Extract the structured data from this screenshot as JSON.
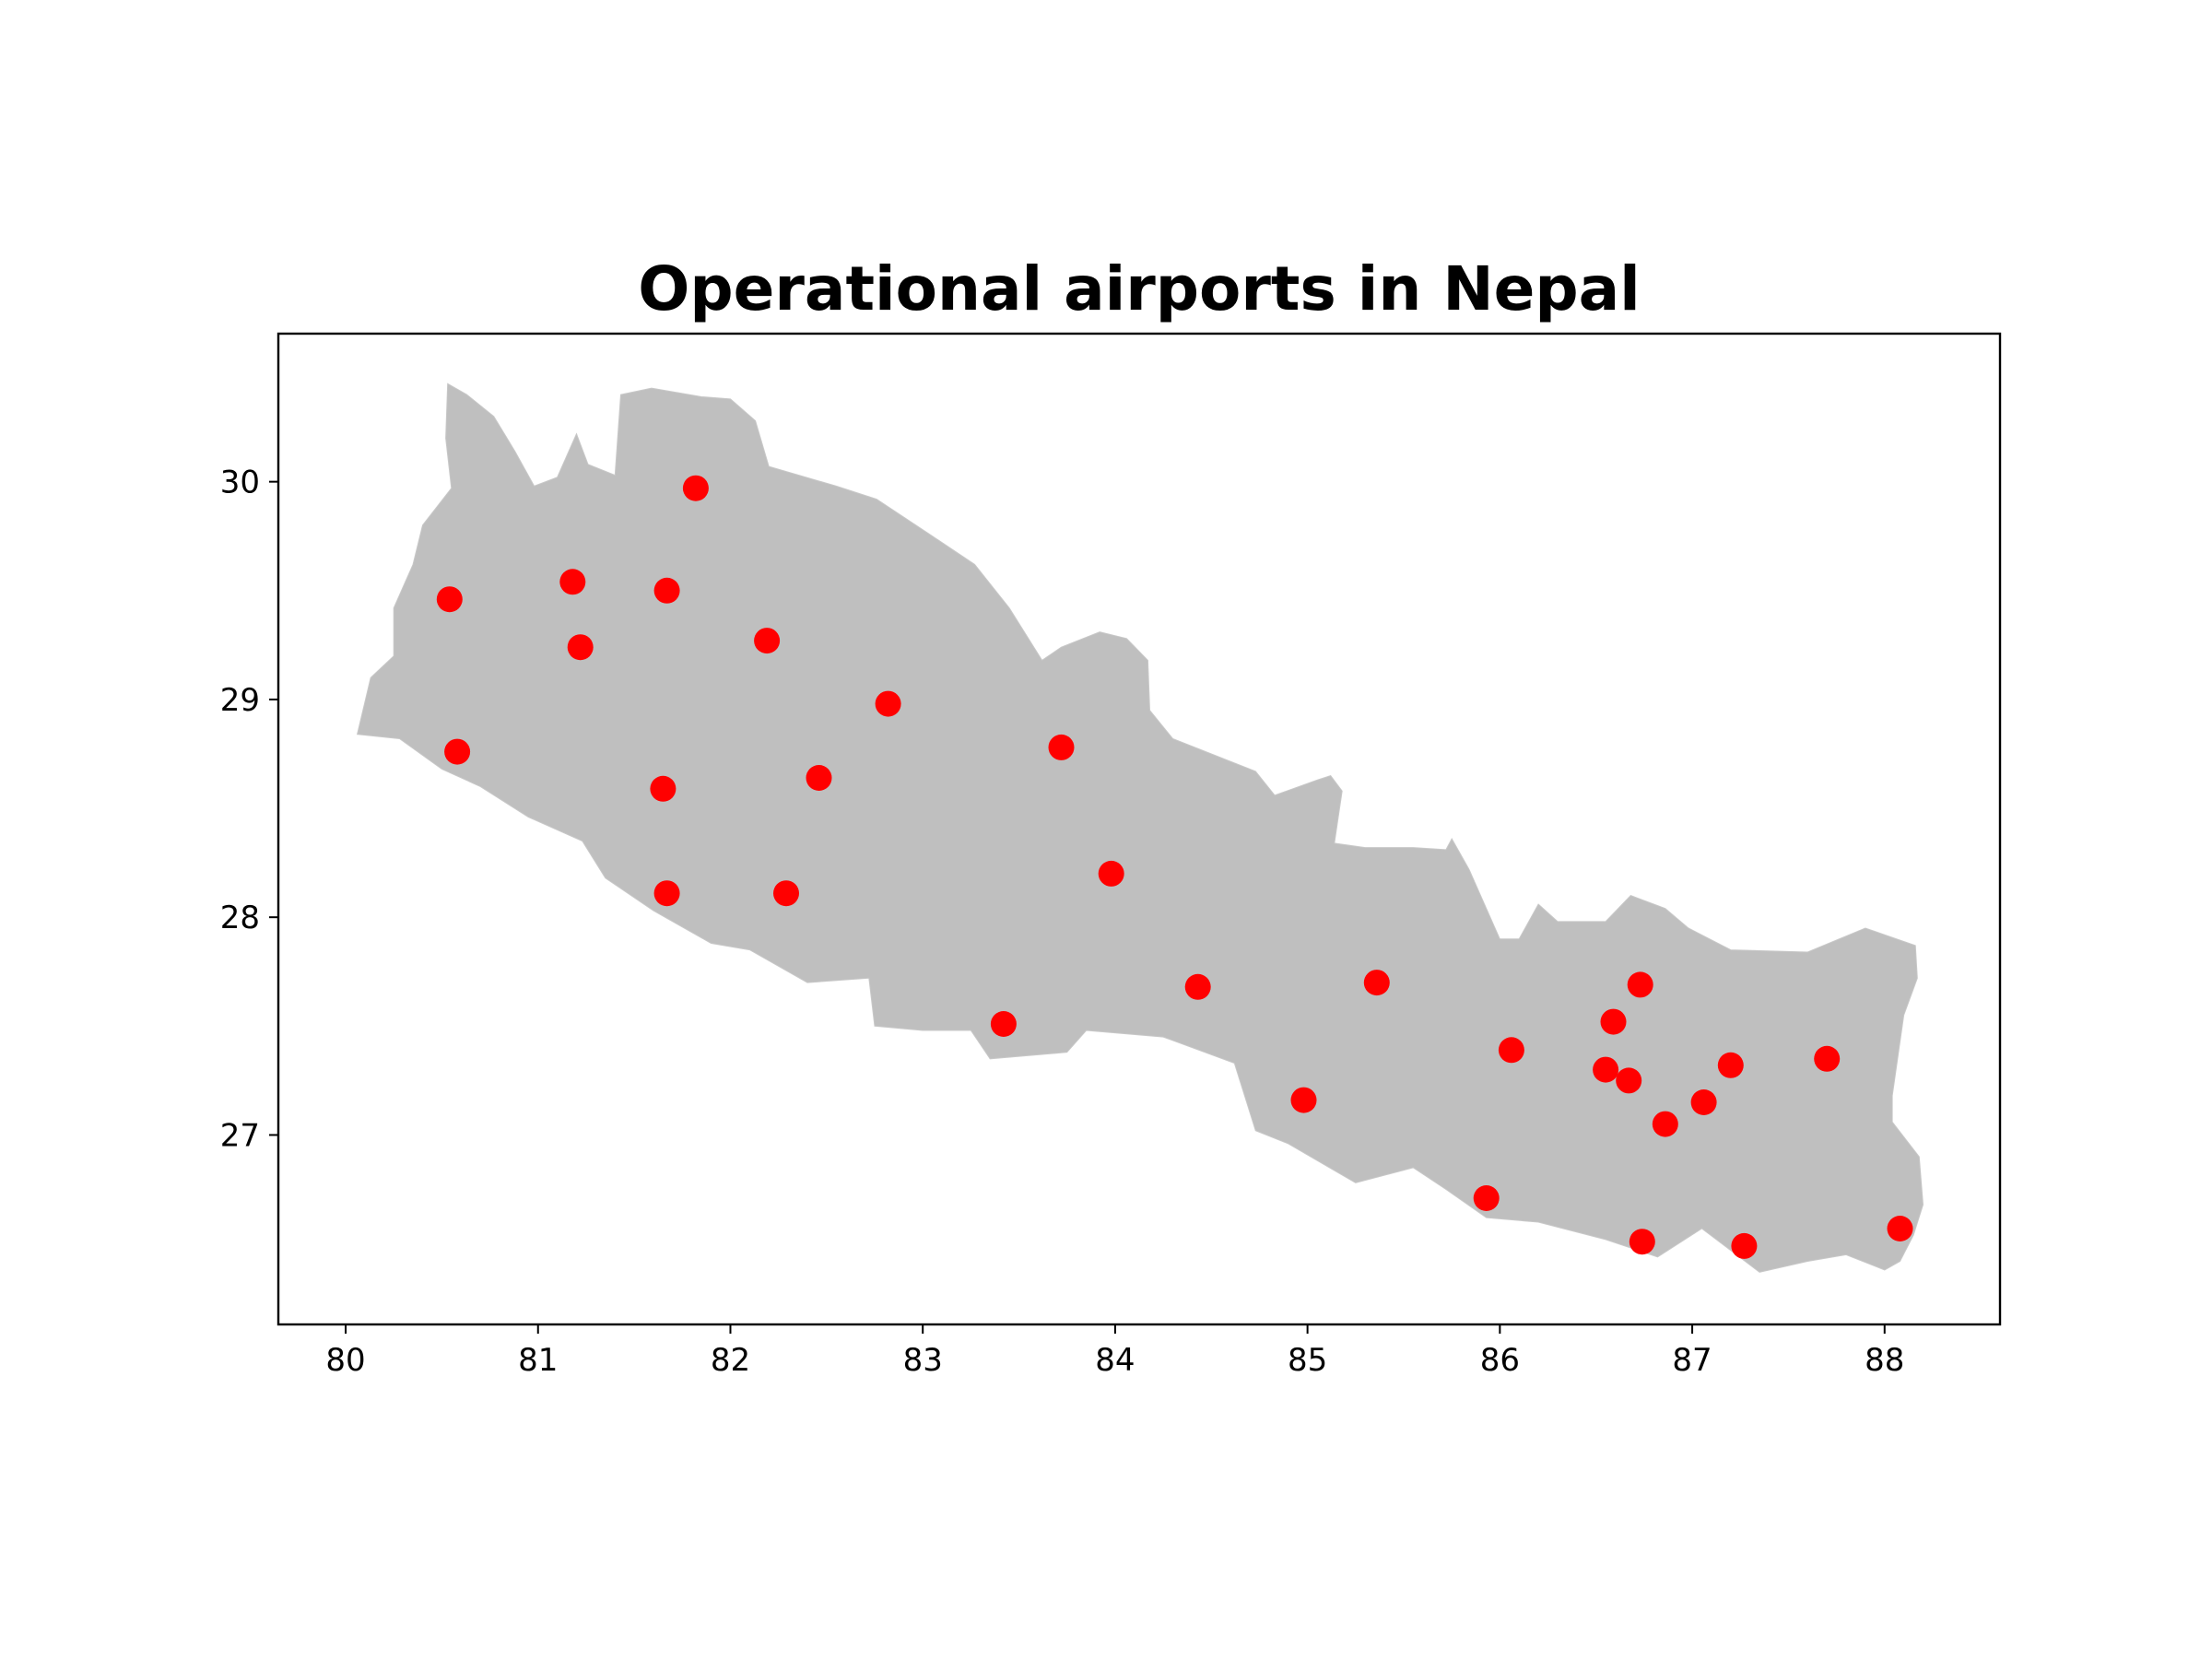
{
  "chart_data": {
    "type": "scatter",
    "title": "Operational airports in Nepal",
    "xlabel": "",
    "ylabel": "",
    "xlim": [
      79.65,
      88.6
    ],
    "ylim": [
      26.13,
      30.68
    ],
    "xticks": [
      80,
      81,
      82,
      83,
      84,
      85,
      86,
      87,
      88
    ],
    "yticks": [
      27,
      28,
      29,
      30
    ],
    "grid": false,
    "colors": {
      "land": "#bfbfbf",
      "point": "#ff0000"
    },
    "points": [
      {
        "lon": 81.82,
        "lat": 29.97
      },
      {
        "lon": 80.54,
        "lat": 29.46
      },
      {
        "lon": 81.18,
        "lat": 29.54
      },
      {
        "lon": 81.67,
        "lat": 29.5
      },
      {
        "lon": 81.22,
        "lat": 29.24
      },
      {
        "lon": 82.19,
        "lat": 29.27
      },
      {
        "lon": 82.82,
        "lat": 28.98
      },
      {
        "lon": 80.58,
        "lat": 28.76
      },
      {
        "lon": 81.65,
        "lat": 28.59
      },
      {
        "lon": 82.46,
        "lat": 28.64
      },
      {
        "lon": 83.72,
        "lat": 28.78
      },
      {
        "lon": 81.67,
        "lat": 28.11
      },
      {
        "lon": 82.29,
        "lat": 28.11
      },
      {
        "lon": 83.98,
        "lat": 28.2
      },
      {
        "lon": 83.42,
        "lat": 27.51
      },
      {
        "lon": 84.43,
        "lat": 27.68
      },
      {
        "lon": 85.36,
        "lat": 27.7
      },
      {
        "lon": 84.98,
        "lat": 27.16
      },
      {
        "lon": 86.06,
        "lat": 27.39
      },
      {
        "lon": 86.59,
        "lat": 27.52
      },
      {
        "lon": 86.73,
        "lat": 27.69
      },
      {
        "lon": 86.55,
        "lat": 27.3
      },
      {
        "lon": 86.67,
        "lat": 27.25
      },
      {
        "lon": 86.86,
        "lat": 27.05
      },
      {
        "lon": 87.06,
        "lat": 27.15
      },
      {
        "lon": 87.2,
        "lat": 27.32
      },
      {
        "lon": 87.7,
        "lat": 27.35
      },
      {
        "lon": 85.93,
        "lat": 26.71
      },
      {
        "lon": 86.74,
        "lat": 26.51
      },
      {
        "lon": 87.27,
        "lat": 26.49
      },
      {
        "lon": 88.08,
        "lat": 26.57
      }
    ]
  },
  "map": {
    "outline": [
      [
        80.53,
        30.45
      ],
      [
        80.63,
        30.4
      ],
      [
        80.77,
        30.3
      ],
      [
        80.88,
        30.14
      ],
      [
        80.98,
        29.98
      ],
      [
        81.1,
        30.02
      ],
      [
        81.2,
        30.22
      ],
      [
        81.26,
        30.08
      ],
      [
        81.4,
        30.03
      ],
      [
        81.43,
        30.4
      ],
      [
        81.59,
        30.43
      ],
      [
        81.85,
        30.39
      ],
      [
        82.0,
        30.38
      ],
      [
        82.13,
        30.28
      ],
      [
        82.2,
        30.07
      ],
      [
        82.55,
        29.98
      ],
      [
        82.76,
        29.92
      ],
      [
        83.05,
        29.75
      ],
      [
        83.27,
        29.62
      ],
      [
        83.45,
        29.42
      ],
      [
        83.62,
        29.18
      ],
      [
        83.72,
        29.24
      ],
      [
        83.92,
        29.31
      ],
      [
        84.06,
        29.28
      ],
      [
        84.17,
        29.18
      ],
      [
        84.18,
        28.95
      ],
      [
        84.3,
        28.82
      ],
      [
        84.5,
        28.75
      ],
      [
        84.73,
        28.67
      ],
      [
        84.83,
        28.56
      ],
      [
        85.05,
        28.63
      ],
      [
        85.12,
        28.65
      ],
      [
        85.18,
        28.58
      ],
      [
        85.14,
        28.34
      ],
      [
        85.3,
        28.32
      ],
      [
        85.55,
        28.32
      ],
      [
        85.72,
        28.31
      ],
      [
        85.75,
        28.36
      ],
      [
        85.84,
        28.22
      ],
      [
        86.0,
        27.9
      ],
      [
        86.1,
        27.9
      ],
      [
        86.2,
        28.06
      ],
      [
        86.3,
        27.98
      ],
      [
        86.55,
        27.98
      ],
      [
        86.68,
        28.1
      ],
      [
        86.86,
        28.04
      ],
      [
        86.98,
        27.95
      ],
      [
        87.2,
        27.85
      ],
      [
        87.6,
        27.84
      ],
      [
        87.9,
        27.95
      ],
      [
        88.16,
        27.87
      ],
      [
        88.17,
        27.72
      ],
      [
        88.1,
        27.55
      ],
      [
        88.04,
        27.18
      ],
      [
        88.04,
        27.06
      ],
      [
        88.18,
        26.9
      ],
      [
        88.2,
        26.68
      ],
      [
        88.15,
        26.54
      ],
      [
        88.08,
        26.42
      ],
      [
        88.0,
        26.38
      ],
      [
        87.8,
        26.45
      ],
      [
        87.6,
        26.42
      ],
      [
        87.35,
        26.37
      ],
      [
        87.05,
        26.57
      ],
      [
        86.82,
        26.44
      ],
      [
        86.55,
        26.52
      ],
      [
        86.2,
        26.6
      ],
      [
        85.93,
        26.62
      ],
      [
        85.72,
        26.75
      ],
      [
        85.55,
        26.85
      ],
      [
        85.25,
        26.78
      ],
      [
        84.9,
        26.96
      ],
      [
        84.73,
        27.02
      ],
      [
        84.62,
        27.33
      ],
      [
        84.25,
        27.45
      ],
      [
        83.85,
        27.48
      ],
      [
        83.75,
        27.38
      ],
      [
        83.35,
        27.35
      ],
      [
        83.25,
        27.48
      ],
      [
        83.0,
        27.48
      ],
      [
        82.75,
        27.5
      ],
      [
        82.72,
        27.72
      ],
      [
        82.4,
        27.7
      ],
      [
        82.1,
        27.85
      ],
      [
        81.9,
        27.88
      ],
      [
        81.6,
        28.03
      ],
      [
        81.35,
        28.18
      ],
      [
        81.23,
        28.35
      ],
      [
        80.95,
        28.46
      ],
      [
        80.7,
        28.6
      ],
      [
        80.5,
        28.68
      ],
      [
        80.28,
        28.82
      ],
      [
        80.06,
        28.84
      ],
      [
        80.13,
        29.1
      ],
      [
        80.25,
        29.2
      ],
      [
        80.25,
        29.42
      ],
      [
        80.35,
        29.62
      ],
      [
        80.4,
        29.8
      ],
      [
        80.55,
        29.97
      ],
      [
        80.52,
        30.2
      ]
    ]
  }
}
